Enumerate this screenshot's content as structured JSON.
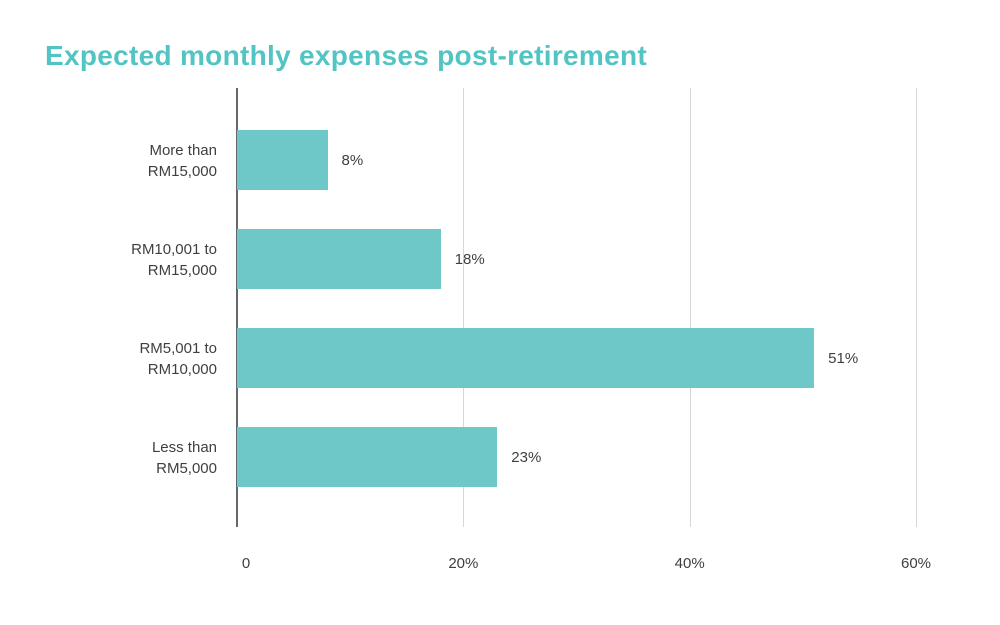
{
  "colors": {
    "title": "#53c4c4",
    "bar": "#6fc8c8",
    "axis": "#63686d",
    "gridline": "#d6d6d6",
    "label": "#3f3f3f"
  },
  "chart_data": {
    "type": "bar",
    "orientation": "horizontal",
    "title": "Expected monthly expenses post-retirement",
    "categories": [
      [
        "More than",
        "RM15,000"
      ],
      [
        "RM10,001 to",
        "RM15,000"
      ],
      [
        "RM5,001 to",
        "RM10,000"
      ],
      [
        "Less than",
        "RM5,000"
      ]
    ],
    "values": [
      8,
      18,
      51,
      23
    ],
    "value_labels": [
      "8%",
      "18%",
      "51%",
      "23%"
    ],
    "xlabel": "",
    "ylabel": "",
    "xlim": [
      0,
      60
    ],
    "xticks": [
      0,
      20,
      40,
      60
    ],
    "xtick_labels": [
      "0",
      "20%",
      "40%",
      "60%"
    ],
    "grid": true,
    "legend": false
  }
}
